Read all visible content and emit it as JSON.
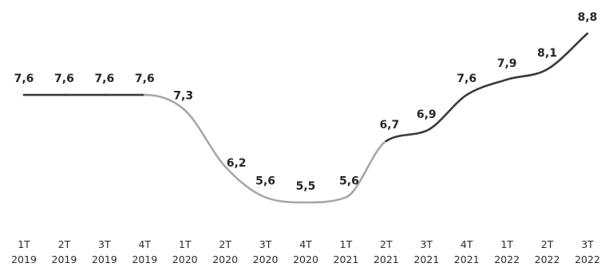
{
  "chart_data": {
    "type": "line",
    "title": "",
    "xlabel": "",
    "ylabel": "",
    "categories": [
      [
        "1T",
        "2019"
      ],
      [
        "2T",
        "2019"
      ],
      [
        "3T",
        "2019"
      ],
      [
        "4T",
        "2019"
      ],
      [
        "1T",
        "2020"
      ],
      [
        "2T",
        "2020"
      ],
      [
        "3T",
        "2020"
      ],
      [
        "4T",
        "2020"
      ],
      [
        "1T",
        "2021"
      ],
      [
        "2T",
        "2021"
      ],
      [
        "3T",
        "2021"
      ],
      [
        "4T",
        "2021"
      ],
      [
        "1T",
        "2022"
      ],
      [
        "2T",
        "2022"
      ],
      [
        "3T",
        "2022"
      ]
    ],
    "series": [
      {
        "values": [
          7.6,
          7.6,
          7.6,
          7.6,
          7.3,
          6.2,
          5.6,
          5.5,
          5.6,
          6.7,
          6.9,
          7.6,
          7.9,
          8.1,
          8.8
        ],
        "value_labels": [
          "7,6",
          "7,6",
          "7,6",
          "7,6",
          "7,3",
          "6,2",
          "5,6",
          "5,5",
          "5,6",
          "6,7",
          "6,9",
          "7,6",
          "7,9",
          "8,1",
          "8,8"
        ],
        "color": "#3a3a3a",
        "highlight_color": "#a8a8a8",
        "highlight_range": [
          3,
          9
        ]
      }
    ],
    "grid": false,
    "legend": "none"
  }
}
